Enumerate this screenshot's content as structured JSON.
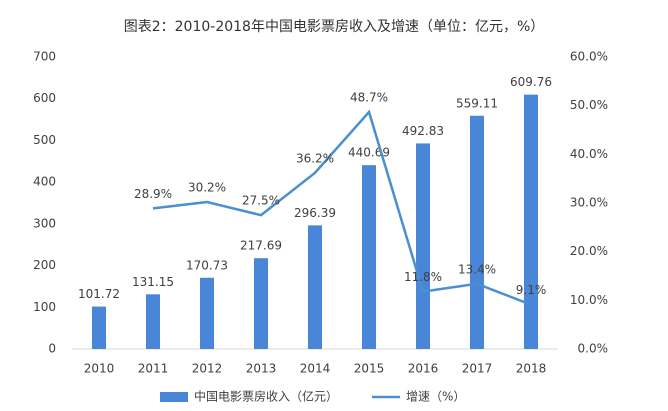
{
  "chart_data": {
    "type": "bar",
    "title": "图表2：2010-2018年中国电影票房收入及增速（单位：亿元，%）",
    "categories": [
      "2010",
      "2011",
      "2012",
      "2013",
      "2014",
      "2015",
      "2016",
      "2017",
      "2018"
    ],
    "series": [
      {
        "name": "中国电影票房收入（亿元）",
        "type": "bar",
        "color": "#4a86d8",
        "values": [
          101.72,
          131.15,
          170.73,
          217.69,
          296.39,
          440.69,
          492.83,
          559.11,
          609.76
        ]
      },
      {
        "name": "增速（%）",
        "type": "line",
        "axis": "y2",
        "color": "#4b8fd0",
        "values": [
          null,
          28.9,
          30.2,
          27.5,
          36.2,
          48.7,
          11.8,
          13.4,
          9.1
        ],
        "value_labels": [
          null,
          "28.9%",
          "30.2%",
          "27.5%",
          "36.2%",
          "48.7%",
          "11.8%",
          "13.4%",
          "9.1%"
        ]
      }
    ],
    "ylim": [
      0,
      700
    ],
    "yticks": [
      0,
      100,
      200,
      300,
      400,
      500,
      600,
      700
    ],
    "y2lim": [
      0,
      60
    ],
    "y2ticks": [
      {
        "value": 0,
        "label": "0.0%"
      },
      {
        "value": 10,
        "label": "10.0%"
      },
      {
        "value": 20,
        "label": "20.0%"
      },
      {
        "value": 30,
        "label": "30.0%"
      },
      {
        "value": 40,
        "label": "40.0%"
      },
      {
        "value": 50,
        "label": "50.0%"
      },
      {
        "value": 60,
        "label": "60.0%"
      }
    ],
    "legend": "bottom"
  }
}
